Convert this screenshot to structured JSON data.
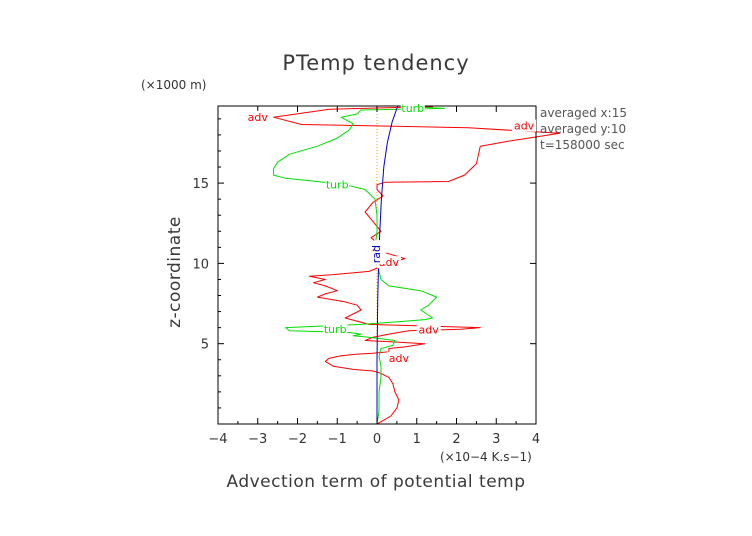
{
  "chart_data": {
    "type": "line",
    "title": "PTemp tendency",
    "xlabel": "Advection term of potential temp",
    "ylabel": "z-coordinate",
    "x_unit": "(×10−4 K.s−1)",
    "y_unit": "(×1000 m)",
    "xlim": [
      -4,
      4
    ],
    "ylim": [
      0,
      19.8
    ],
    "x_ticks": [
      -4,
      -3,
      -2,
      -1,
      0,
      1,
      2,
      3,
      4
    ],
    "x_tick_labels": [
      "−4",
      "−3",
      "−2",
      "−1",
      "0",
      "1",
      "2",
      "3",
      "4"
    ],
    "y_ticks": [
      5,
      10,
      15
    ],
    "y_tick_labels": [
      "5",
      "10",
      "15"
    ],
    "notes": [
      "averaged  x:15",
      "averaged  y:10",
      "t=158000 sec"
    ],
    "colors": {
      "adv": "#ff0000",
      "turb": "#00dd00",
      "rad": "#0000cc",
      "zero": "#ff9900",
      "axes": "#000000"
    },
    "series": [
      {
        "name": "adv",
        "color": "#ff0000",
        "x": [
          0.0,
          0.35,
          0.5,
          0.55,
          0.45,
          0.4,
          0.3,
          0.05,
          -0.1,
          -0.6,
          -1.1,
          -1.3,
          -1.2,
          -0.9,
          -0.5,
          -0.1,
          0.1,
          0.3,
          0.3,
          0.3,
          0.7,
          1.2,
          0.5,
          -0.3,
          -0.1,
          0.3,
          0.8,
          2.1,
          2.6,
          1.2,
          -0.2,
          -0.8,
          -0.4,
          -0.5,
          -0.8,
          -1.5,
          -1.3,
          -1.0,
          -1.3,
          -1.6,
          -1.3,
          -1.7,
          -1.1,
          -0.2,
          0.1,
          0.3,
          0.7,
          0.3,
          -0.1,
          0.05,
          -0.15,
          0.1,
          -0.1,
          -0.3,
          -0.1,
          0.15,
          0.0,
          0.0,
          0.2,
          1.8,
          2.2,
          2.5,
          2.6,
          3.3,
          4.6,
          2.3,
          -1.9,
          -2.6,
          -1.2,
          0.4,
          1.4,
          0.5
        ],
        "y": [
          0.0,
          0.5,
          1.0,
          1.5,
          2.0,
          2.5,
          2.9,
          3.2,
          3.3,
          3.4,
          3.6,
          3.9,
          4.1,
          4.25,
          4.35,
          4.4,
          4.45,
          4.5,
          4.6,
          4.7,
          4.8,
          5.0,
          5.1,
          5.2,
          5.4,
          5.6,
          5.8,
          5.9,
          6.0,
          6.1,
          6.2,
          6.6,
          7.1,
          7.4,
          7.6,
          7.9,
          8.1,
          8.3,
          8.6,
          8.8,
          9.0,
          9.2,
          9.3,
          9.5,
          9.8,
          10.0,
          10.3,
          10.6,
          10.8,
          11.2,
          11.6,
          12.0,
          12.6,
          13.2,
          13.8,
          14.2,
          14.6,
          14.9,
          15.05,
          15.1,
          15.5,
          16.2,
          17.3,
          17.6,
          18.1,
          18.45,
          18.65,
          19.1,
          19.6,
          19.7,
          19.75,
          19.8
        ],
        "labels": [
          {
            "text": "adv",
            "x": 0.55,
            "y": 4.0
          },
          {
            "text": "adv",
            "x": 0.3,
            "y": 9.95
          },
          {
            "text": "adv",
            "x": 1.3,
            "y": 5.75
          },
          {
            "text": "adv",
            "x": 3.7,
            "y": 18.45
          },
          {
            "text": "adv",
            "x": -3.0,
            "y": 19.0
          }
        ]
      },
      {
        "name": "turb",
        "color": "#00dd00",
        "x": [
          0.0,
          0.05,
          0.05,
          0.1,
          0.1,
          0.05,
          0.1,
          0.4,
          0.45,
          -0.2,
          -0.6,
          -0.4,
          -0.7,
          -2.2,
          -2.3,
          -0.4,
          0.7,
          1.2,
          1.4,
          1.1,
          1.3,
          1.5,
          1.1,
          0.3,
          0.1,
          0.0,
          -0.05,
          0.0,
          0.0,
          -0.05,
          -0.3,
          -0.8,
          -1.5,
          -2.3,
          -2.6,
          -2.6,
          -2.5,
          -2.2,
          -1.5,
          -1.0,
          -0.7,
          -0.6,
          -0.9,
          -0.5,
          -0.4,
          1.7,
          0.8,
          0.5
        ],
        "y": [
          0.0,
          0.8,
          2.0,
          2.9,
          3.6,
          4.2,
          4.7,
          4.9,
          5.2,
          5.4,
          5.5,
          5.6,
          5.7,
          5.8,
          6.0,
          6.2,
          6.4,
          6.5,
          6.6,
          7.1,
          7.4,
          7.9,
          8.3,
          8.6,
          9.0,
          10.0,
          11.0,
          12.0,
          13.0,
          14.0,
          14.6,
          14.9,
          15.1,
          15.3,
          15.5,
          15.9,
          16.3,
          16.8,
          17.3,
          17.8,
          18.3,
          18.7,
          19.1,
          19.3,
          19.55,
          19.65,
          19.75,
          19.8
        ],
        "labels": [
          {
            "text": "turb",
            "x": -1.0,
            "y": 14.8
          },
          {
            "text": "turb",
            "x": -1.05,
            "y": 5.8
          },
          {
            "text": "turb",
            "x": 0.9,
            "y": 19.55
          }
        ]
      },
      {
        "name": "rad",
        "color": "#0000cc",
        "x": [
          0.0,
          0.0,
          0.02,
          0.04,
          0.07,
          0.11,
          0.17,
          0.26,
          0.38,
          0.52
        ],
        "y": [
          0.0,
          4.0,
          8.0,
          10.0,
          12.0,
          14.0,
          16.0,
          17.5,
          18.8,
          19.8
        ],
        "labels": [
          {
            "text": "rad",
            "x": 0.08,
            "y": 10.7
          }
        ]
      }
    ]
  }
}
